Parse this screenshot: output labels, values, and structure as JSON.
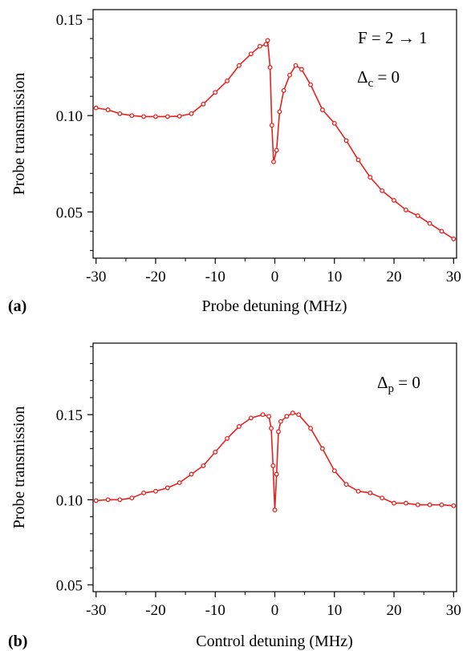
{
  "chart_data": [
    {
      "type": "line",
      "panel_label": "(a)",
      "xlabel": "Probe detuning (MHz)",
      "ylabel": "Probe transmission",
      "xlim": [
        -30.5,
        30.5
      ],
      "ylim": [
        0.026,
        0.155
      ],
      "xticks": [
        -30,
        -20,
        -10,
        0,
        10,
        20,
        30
      ],
      "xtick_labels": [
        "-30",
        "-20",
        "-10",
        "0",
        "10",
        "20",
        "30"
      ],
      "yticks": [
        0.05,
        0.1,
        0.15
      ],
      "ytick_labels": [
        "0.05",
        "0.10",
        "0.15"
      ],
      "annotations": [
        {
          "text": "F = 2 → 1"
        },
        {
          "main": "Δ",
          "sub": "c",
          "rest": " = 0"
        }
      ],
      "color": "#e8211f",
      "grid": false,
      "series": [
        {
          "x": [
            -30,
            -28,
            -26,
            -24,
            -22,
            -20,
            -18,
            -16,
            -14,
            -12,
            -10,
            -8,
            -6,
            -4,
            -2.5,
            -1.5,
            -1.2,
            -0.8,
            -0.5,
            -0.2,
            0.3,
            0.8,
            1.5,
            2.5,
            3.5,
            4.5,
            6,
            8,
            10,
            12,
            14,
            16,
            18,
            20,
            22,
            24,
            26,
            28,
            30
          ],
          "y": [
            0.104,
            0.103,
            0.101,
            0.1,
            0.0995,
            0.0995,
            0.0995,
            0.0997,
            0.101,
            0.106,
            0.112,
            0.118,
            0.126,
            0.132,
            0.136,
            0.137,
            0.139,
            0.125,
            0.095,
            0.076,
            0.082,
            0.102,
            0.113,
            0.121,
            0.126,
            0.124,
            0.116,
            0.103,
            0.096,
            0.087,
            0.077,
            0.068,
            0.061,
            0.056,
            0.051,
            0.048,
            0.044,
            0.04,
            0.036
          ]
        }
      ]
    },
    {
      "type": "line",
      "panel_label": "(b)",
      "xlabel": "Control detuning (MHz)",
      "ylabel": "Probe transmission",
      "xlim": [
        -30.5,
        30.5
      ],
      "ylim": [
        0.046,
        0.192
      ],
      "xticks": [
        -30,
        -20,
        -10,
        0,
        10,
        20,
        30
      ],
      "xtick_labels": [
        "-30",
        "-20",
        "-10",
        "0",
        "10",
        "20",
        "30"
      ],
      "yticks": [
        0.05,
        0.1,
        0.15
      ],
      "ytick_labels": [
        "0.05",
        "0.10",
        "0.15"
      ],
      "annotations": [
        {
          "main": "Δ",
          "sub": "p",
          "rest": " = 0"
        }
      ],
      "color": "#e8211f",
      "grid": false,
      "series": [
        {
          "x": [
            -30,
            -28,
            -26,
            -24,
            -22,
            -20,
            -18,
            -16,
            -14,
            -12,
            -10,
            -8,
            -6,
            -4,
            -2,
            -1,
            -0.6,
            -0.3,
            0,
            0.3,
            0.6,
            1,
            2,
            3,
            4,
            6,
            8,
            10,
            12,
            14,
            16,
            18,
            20,
            22,
            24,
            26,
            28,
            30
          ],
          "y": [
            0.0995,
            0.1,
            0.1,
            0.101,
            0.104,
            0.105,
            0.107,
            0.11,
            0.115,
            0.12,
            0.128,
            0.136,
            0.143,
            0.148,
            0.15,
            0.149,
            0.142,
            0.12,
            0.094,
            0.115,
            0.14,
            0.146,
            0.149,
            0.151,
            0.15,
            0.142,
            0.13,
            0.117,
            0.109,
            0.105,
            0.104,
            0.101,
            0.098,
            0.098,
            0.097,
            0.097,
            0.097,
            0.0965
          ]
        }
      ]
    }
  ]
}
